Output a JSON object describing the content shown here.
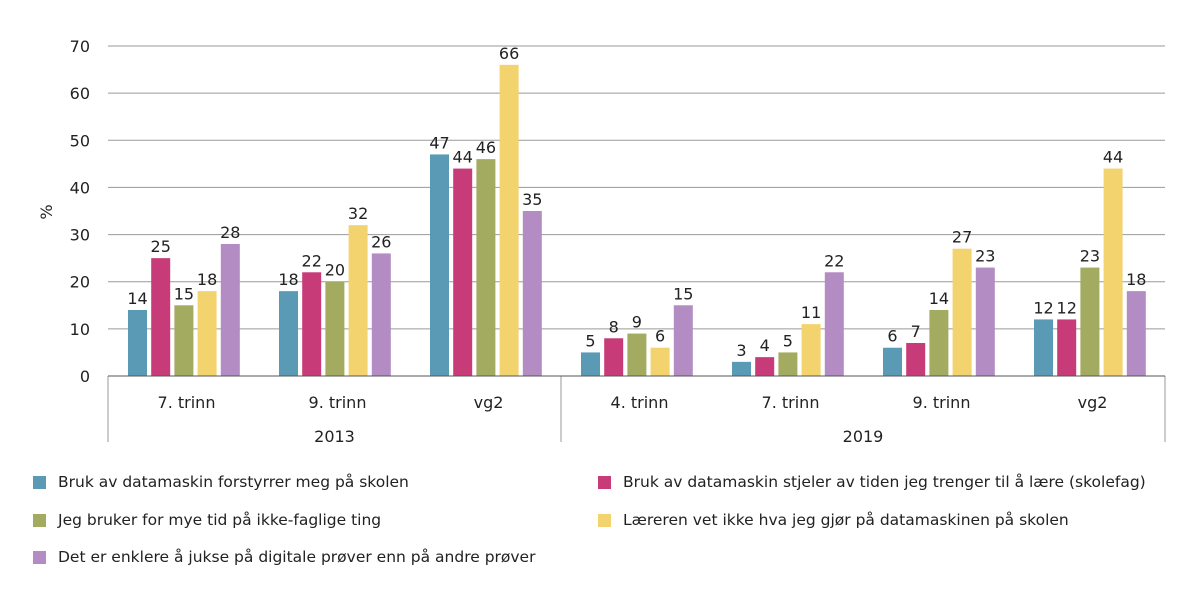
{
  "chart_data": {
    "type": "bar",
    "ylabel": "%",
    "ylim": [
      0,
      70
    ],
    "yticks": [
      0,
      10,
      20,
      30,
      40,
      50,
      60,
      70
    ],
    "grid": true,
    "legend_position": "bottom",
    "groups": [
      {
        "label": "2013",
        "categories": [
          "7. trinn",
          "9. trinn",
          "vg2"
        ]
      },
      {
        "label": "2019",
        "categories": [
          "4. trinn",
          "7. trinn",
          "9. trinn",
          "vg2"
        ]
      }
    ],
    "categories": [
      "7. trinn",
      "9. trinn",
      "vg2",
      "4. trinn",
      "7. trinn",
      "9. trinn",
      "vg2"
    ],
    "series": [
      {
        "name": "Bruk av datamaskin forstyrrer meg på skolen",
        "color": "#5b9ab5",
        "values": [
          14,
          18,
          47,
          5,
          3,
          6,
          12
        ]
      },
      {
        "name": "Bruk av datamaskin stjeler av tiden jeg trenger til å lære (skolefag)",
        "color": "#c63b78",
        "values": [
          25,
          22,
          44,
          8,
          4,
          7,
          12
        ]
      },
      {
        "name": "Jeg bruker for mye tid på ikke-faglige ting",
        "color": "#a3ab61",
        "values": [
          15,
          20,
          46,
          9,
          5,
          14,
          23
        ]
      },
      {
        "name": "Læreren vet ikke hva jeg gjør på datamaskinen på skolen",
        "color": "#f2d36d",
        "values": [
          18,
          32,
          66,
          6,
          11,
          27,
          44
        ]
      },
      {
        "name": "Det er enklere å jukse på digitale prøver enn på andre prøver",
        "color": "#b28cc2",
        "values": [
          28,
          26,
          35,
          15,
          22,
          23,
          18
        ]
      }
    ]
  }
}
